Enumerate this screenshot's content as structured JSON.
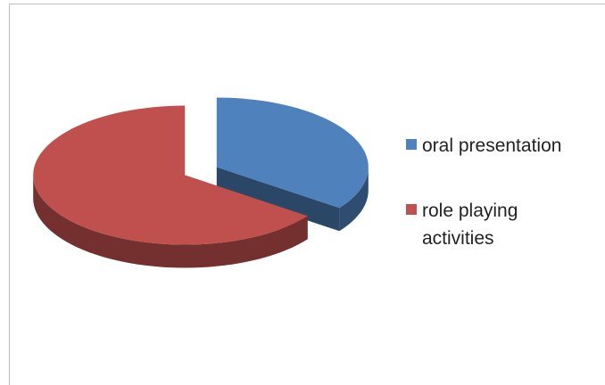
{
  "chart_data": {
    "type": "pie",
    "categories": [
      "oral presentation",
      "role playing activities"
    ],
    "values": [
      35,
      65
    ],
    "colors": [
      "#4f81bd",
      "#c0504d"
    ],
    "legend": "right"
  }
}
